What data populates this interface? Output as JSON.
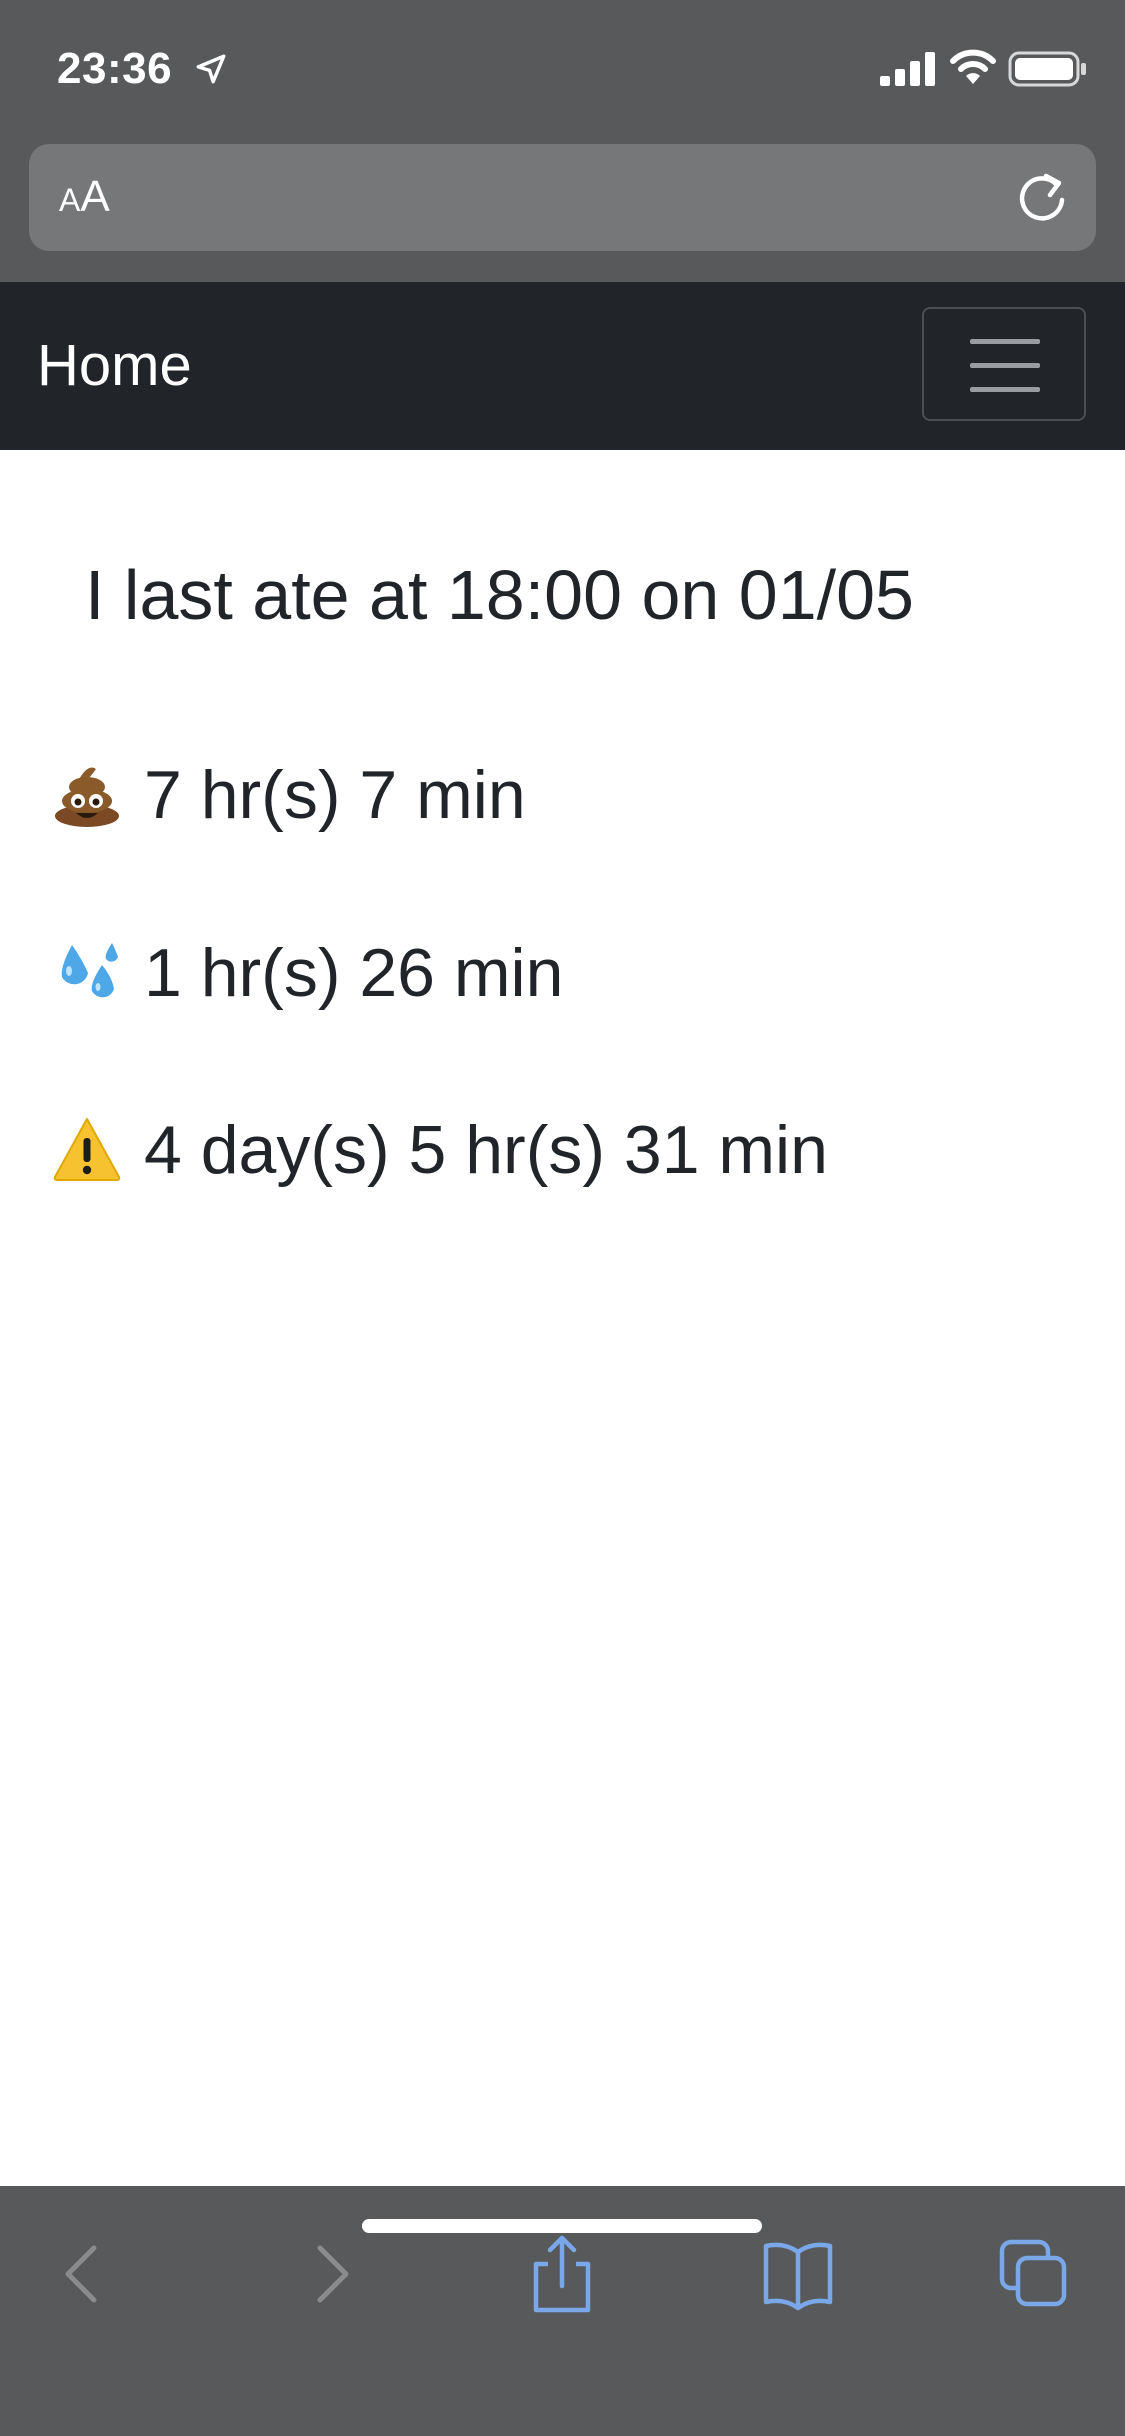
{
  "status_bar": {
    "time": "23:36",
    "icons": [
      "location-arrow-icon",
      "cellular-signal-icon",
      "wifi-icon",
      "battery-icon"
    ]
  },
  "address_bar": {
    "reader_small": "A",
    "reader_large": "A",
    "reload_icon": "reload-icon"
  },
  "navbar": {
    "brand": "Home",
    "toggler_icon": "hamburger-menu-icon",
    "background": "#212529"
  },
  "main": {
    "last_ate": "I last ate at 18:00 on 01/05",
    "stats": [
      {
        "emoji": "💩",
        "icon": "poop-icon",
        "text": "7 hr(s) 7 min"
      },
      {
        "emoji": "💦",
        "icon": "sweat-droplets-icon",
        "text": "1 hr(s) 26 min"
      },
      {
        "emoji": "⚠️",
        "icon": "warning-icon",
        "text": "4 day(s) 5 hr(s) 31 min"
      }
    ]
  },
  "toolbar": {
    "icons": [
      "back-icon",
      "forward-icon",
      "share-icon",
      "bookmarks-icon",
      "tabs-icon"
    ],
    "accent": "#7aa7e8"
  }
}
